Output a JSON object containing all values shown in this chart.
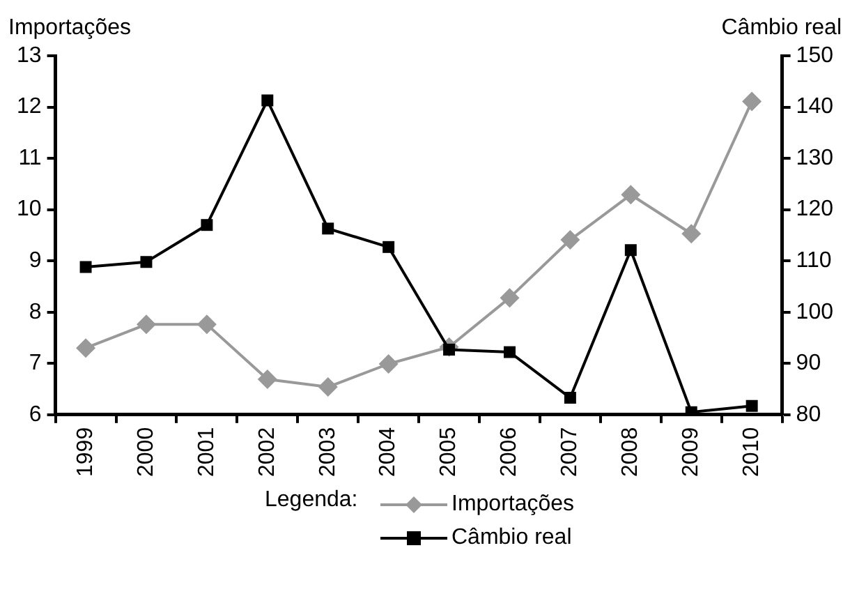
{
  "chart_data": {
    "type": "line",
    "ylabel": "Importações",
    "y2label": "Câmbio real",
    "legend_title": "Legenda:",
    "categories": [
      "1999",
      "2000",
      "2001",
      "2002",
      "2003",
      "2004",
      "2005",
      "2006",
      "2007",
      "2008",
      "2009",
      "2010"
    ],
    "series": [
      {
        "name": "Importações",
        "color": "#999999",
        "marker": "diamond",
        "axis": "y",
        "values": [
          7.3,
          7.76,
          7.76,
          6.69,
          6.54,
          6.99,
          7.32,
          8.28,
          9.41,
          10.29,
          9.53,
          12.11
        ]
      },
      {
        "name": "Câmbio real",
        "color": "#000000",
        "marker": "square",
        "axis": "y2",
        "values": [
          108.8,
          109.8,
          117.0,
          141.3,
          116.3,
          112.7,
          92.7,
          92.2,
          83.3,
          112.1,
          80.5,
          81.7
        ]
      }
    ],
    "ylim": [
      6,
      13
    ],
    "yticks": [
      6,
      7,
      8,
      9,
      10,
      11,
      12,
      13
    ],
    "y2lim": [
      80,
      150
    ],
    "y2ticks": [
      80,
      90,
      100,
      110,
      120,
      130,
      140,
      150
    ],
    "grid": false,
    "legend": "bottom"
  }
}
